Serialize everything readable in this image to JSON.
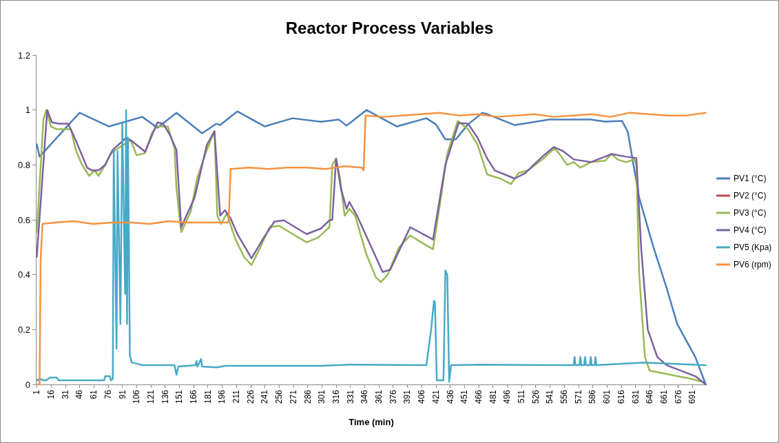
{
  "chart_data": {
    "type": "line",
    "title": "Reactor Process Variables",
    "xlabel": "Time (min)",
    "xlim": [
      0,
      706
    ],
    "xticks": [
      1,
      16,
      31,
      46,
      61,
      76,
      91,
      106,
      121,
      136,
      151,
      166,
      181,
      196,
      211,
      226,
      241,
      256,
      271,
      286,
      301,
      316,
      331,
      346,
      361,
      376,
      391,
      406,
      421,
      436,
      451,
      466,
      481,
      496,
      511,
      526,
      541,
      556,
      571,
      586,
      601,
      616,
      631,
      646,
      661,
      676,
      691
    ],
    "ylim": [
      0,
      1.2
    ],
    "yticks": [
      0,
      0.2,
      0.4,
      0.6,
      0.8,
      1,
      1.2
    ],
    "grid": false,
    "legend": "right",
    "marker": "none",
    "line_style": "solid",
    "series": [
      {
        "name": "PV1 (°C)",
        "color": "#4a7ebb",
        "x": [
          1,
          4,
          46,
          77,
          112,
          128,
          148,
          175,
          190,
          194,
          212,
          241,
          270,
          300,
          319,
          327,
          348,
          380,
          411,
          421,
          431,
          442,
          455,
          470,
          475,
          504,
          540,
          584,
          599,
          617,
          623,
          629,
          635,
          650,
          664,
          675,
          694,
          705
        ],
        "values": [
          0.875,
          0.83,
          0.99,
          0.94,
          0.975,
          0.935,
          0.99,
          0.915,
          0.95,
          0.945,
          0.995,
          0.94,
          0.97,
          0.957,
          0.965,
          0.943,
          1.0,
          0.94,
          0.97,
          0.948,
          0.893,
          0.893,
          0.948,
          0.99,
          0.985,
          0.945,
          0.965,
          0.965,
          0.958,
          0.96,
          0.92,
          0.8,
          0.68,
          0.5,
          0.35,
          0.22,
          0.1,
          0
        ]
      },
      {
        "name": "PV2 (°C)",
        "color": "#be4b48",
        "values": [
          null
        ]
      },
      {
        "name": "PV3 (°C)",
        "color": "#98b954",
        "x": [
          1,
          8,
          11,
          16,
          22,
          37,
          42,
          48,
          56,
          62,
          66,
          73,
          79,
          90,
          100,
          106,
          115,
          122,
          127,
          139,
          146,
          148,
          153,
          163,
          170,
          180,
          188,
          191,
          195,
          201,
          210,
          219,
          227,
          236,
          246,
          256,
          268,
          285,
          297,
          309,
          312,
          316,
          320,
          325,
          330,
          336,
          348,
          358,
          363,
          370,
          382,
          394,
          407,
          418,
          426,
          433,
          444,
          455,
          465,
          475,
          489,
          500,
          508,
          518,
          533,
          546,
          551,
          559,
          566,
          573,
          584,
          599,
          606,
          612,
          621,
          630,
          632,
          635,
          641,
          646,
          661,
          675,
          690,
          701,
          705
        ],
        "values": [
          0.555,
          0.965,
          1.0,
          0.94,
          0.93,
          0.93,
          0.855,
          0.805,
          0.76,
          0.78,
          0.76,
          0.8,
          0.843,
          0.868,
          0.89,
          0.835,
          0.843,
          0.915,
          0.94,
          0.94,
          0.86,
          0.715,
          0.555,
          0.63,
          0.755,
          0.855,
          0.923,
          0.615,
          0.585,
          0.623,
          0.53,
          0.465,
          0.435,
          0.498,
          0.573,
          0.578,
          0.553,
          0.518,
          0.535,
          0.573,
          0.8,
          0.823,
          0.755,
          0.615,
          0.64,
          0.615,
          0.473,
          0.39,
          0.373,
          0.398,
          0.498,
          0.543,
          0.515,
          0.493,
          0.673,
          0.84,
          0.96,
          0.93,
          0.873,
          0.765,
          0.75,
          0.73,
          0.77,
          0.78,
          0.82,
          0.86,
          0.84,
          0.8,
          0.81,
          0.79,
          0.81,
          0.815,
          0.84,
          0.82,
          0.81,
          0.82,
          0.8,
          0.4,
          0.1,
          0.05,
          0.04,
          0.03,
          0.02,
          0.01,
          0
        ]
      },
      {
        "name": "PV4 (°C)",
        "color": "#7d60a0",
        "x": [
          1,
          12,
          17,
          24,
          34,
          42,
          54,
          59,
          66,
          73,
          81,
          95,
          100,
          115,
          128,
          134,
          141,
          148,
          153,
          167,
          180,
          188,
          194,
          199,
          205,
          212,
          227,
          239,
          251,
          261,
          285,
          300,
          309,
          312,
          316,
          321,
          327,
          330,
          338,
          365,
          373,
          394,
          418,
          431,
          445,
          455,
          465,
          475,
          483,
          497,
          504,
          515,
          533,
          545,
          555,
          566,
          584,
          599,
          606,
          621,
          632,
          637,
          644,
          654,
          664,
          679,
          694,
          705
        ],
        "values": [
          0.465,
          1.0,
          0.955,
          0.95,
          0.95,
          0.89,
          0.79,
          0.78,
          0.78,
          0.8,
          0.855,
          0.898,
          0.89,
          0.848,
          0.955,
          0.95,
          0.91,
          0.855,
          0.573,
          0.68,
          0.873,
          0.923,
          0.615,
          0.635,
          0.605,
          0.548,
          0.46,
          0.53,
          0.593,
          0.598,
          0.548,
          0.568,
          0.598,
          0.6,
          0.823,
          0.715,
          0.64,
          0.665,
          0.615,
          0.41,
          0.418,
          0.573,
          0.528,
          0.8,
          0.953,
          0.95,
          0.898,
          0.823,
          0.78,
          0.76,
          0.75,
          0.77,
          0.83,
          0.865,
          0.85,
          0.82,
          0.81,
          0.83,
          0.84,
          0.83,
          0.825,
          0.5,
          0.2,
          0.1,
          0.07,
          0.05,
          0.03,
          0
        ]
      },
      {
        "name": "PV5 (Kpa)",
        "color": "#46aac5",
        "x": [
          1,
          5,
          8,
          11,
          15,
          22,
          24,
          72,
          73,
          78,
          79,
          81,
          82,
          85,
          86,
          89,
          91,
          94,
          95,
          96,
          97,
          99,
          101,
          107,
          112,
          146,
          148,
          150,
          160,
          168,
          169,
          170,
          174,
          175,
          190,
          200,
          300,
          330,
          411,
          416,
          419,
          420,
          422,
          429,
          431,
          433,
          435,
          437,
          470,
          566,
          567,
          568,
          572,
          573,
          574,
          577,
          578,
          579,
          583,
          584,
          585,
          588,
          589,
          590,
          640,
          705
        ],
        "values": [
          0.015,
          0.02,
          0.015,
          0.015,
          0.025,
          0.025,
          0.015,
          0.015,
          0.03,
          0.03,
          0.015,
          0.02,
          0.855,
          0.13,
          0.85,
          0.22,
          0.95,
          0.33,
          1.0,
          0.22,
          0.9,
          0.105,
          0.08,
          0.075,
          0.07,
          0.07,
          0.035,
          0.065,
          0.068,
          0.07,
          0.085,
          0.065,
          0.093,
          0.065,
          0.062,
          0.068,
          0.068,
          0.072,
          0.07,
          0.2,
          0.305,
          0.3,
          0.015,
          0.015,
          0.415,
          0.4,
          0.01,
          0.07,
          0.072,
          0.07,
          0.1,
          0.07,
          0.07,
          0.1,
          0.07,
          0.07,
          0.1,
          0.07,
          0.07,
          0.1,
          0.07,
          0.07,
          0.1,
          0.07,
          0.08,
          0.07
        ]
      },
      {
        "name": "PV6 (rpm)",
        "color": "#f69240",
        "x": [
          1,
          4,
          5,
          7,
          20,
          40,
          60,
          80,
          100,
          120,
          140,
          160,
          180,
          202,
          203,
          205,
          225,
          245,
          265,
          285,
          305,
          325,
          343,
          345,
          347,
          365,
          385,
          405,
          425,
          445,
          465,
          485,
          505,
          525,
          545,
          565,
          585,
          605,
          625,
          645,
          665,
          685,
          705
        ],
        "values": [
          0,
          0,
          0.45,
          0.585,
          0.59,
          0.595,
          0.585,
          0.59,
          0.59,
          0.585,
          0.595,
          0.59,
          0.59,
          0.59,
          0.6,
          0.785,
          0.79,
          0.785,
          0.79,
          0.79,
          0.785,
          0.795,
          0.79,
          0.78,
          0.98,
          0.975,
          0.98,
          0.985,
          0.99,
          0.98,
          0.985,
          0.975,
          0.98,
          0.985,
          0.975,
          0.98,
          0.985,
          0.975,
          0.99,
          0.985,
          0.98,
          0.98,
          0.99
        ]
      }
    ]
  }
}
